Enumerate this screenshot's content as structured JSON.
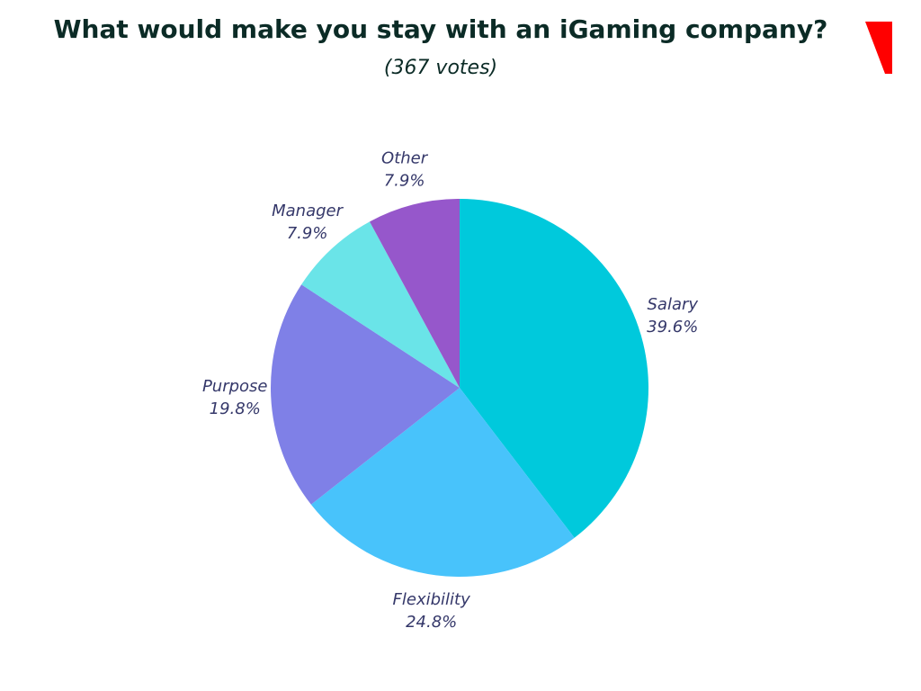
{
  "chart_data": {
    "type": "pie",
    "title": "What would make you stay with an iGaming company?",
    "subtitle": "(367 votes)",
    "categories": [
      "Salary",
      "Flexibility",
      "Purpose",
      "Manager",
      "Other"
    ],
    "values": [
      39.6,
      24.8,
      19.8,
      7.9,
      7.9
    ],
    "value_labels": [
      "39.6%",
      "24.8%",
      "19.8%",
      "7.9%",
      "7.9%"
    ],
    "colors": [
      "#00c9dc",
      "#48c3fb",
      "#7f80e7",
      "#6ae4e8",
      "#9657cb"
    ]
  }
}
